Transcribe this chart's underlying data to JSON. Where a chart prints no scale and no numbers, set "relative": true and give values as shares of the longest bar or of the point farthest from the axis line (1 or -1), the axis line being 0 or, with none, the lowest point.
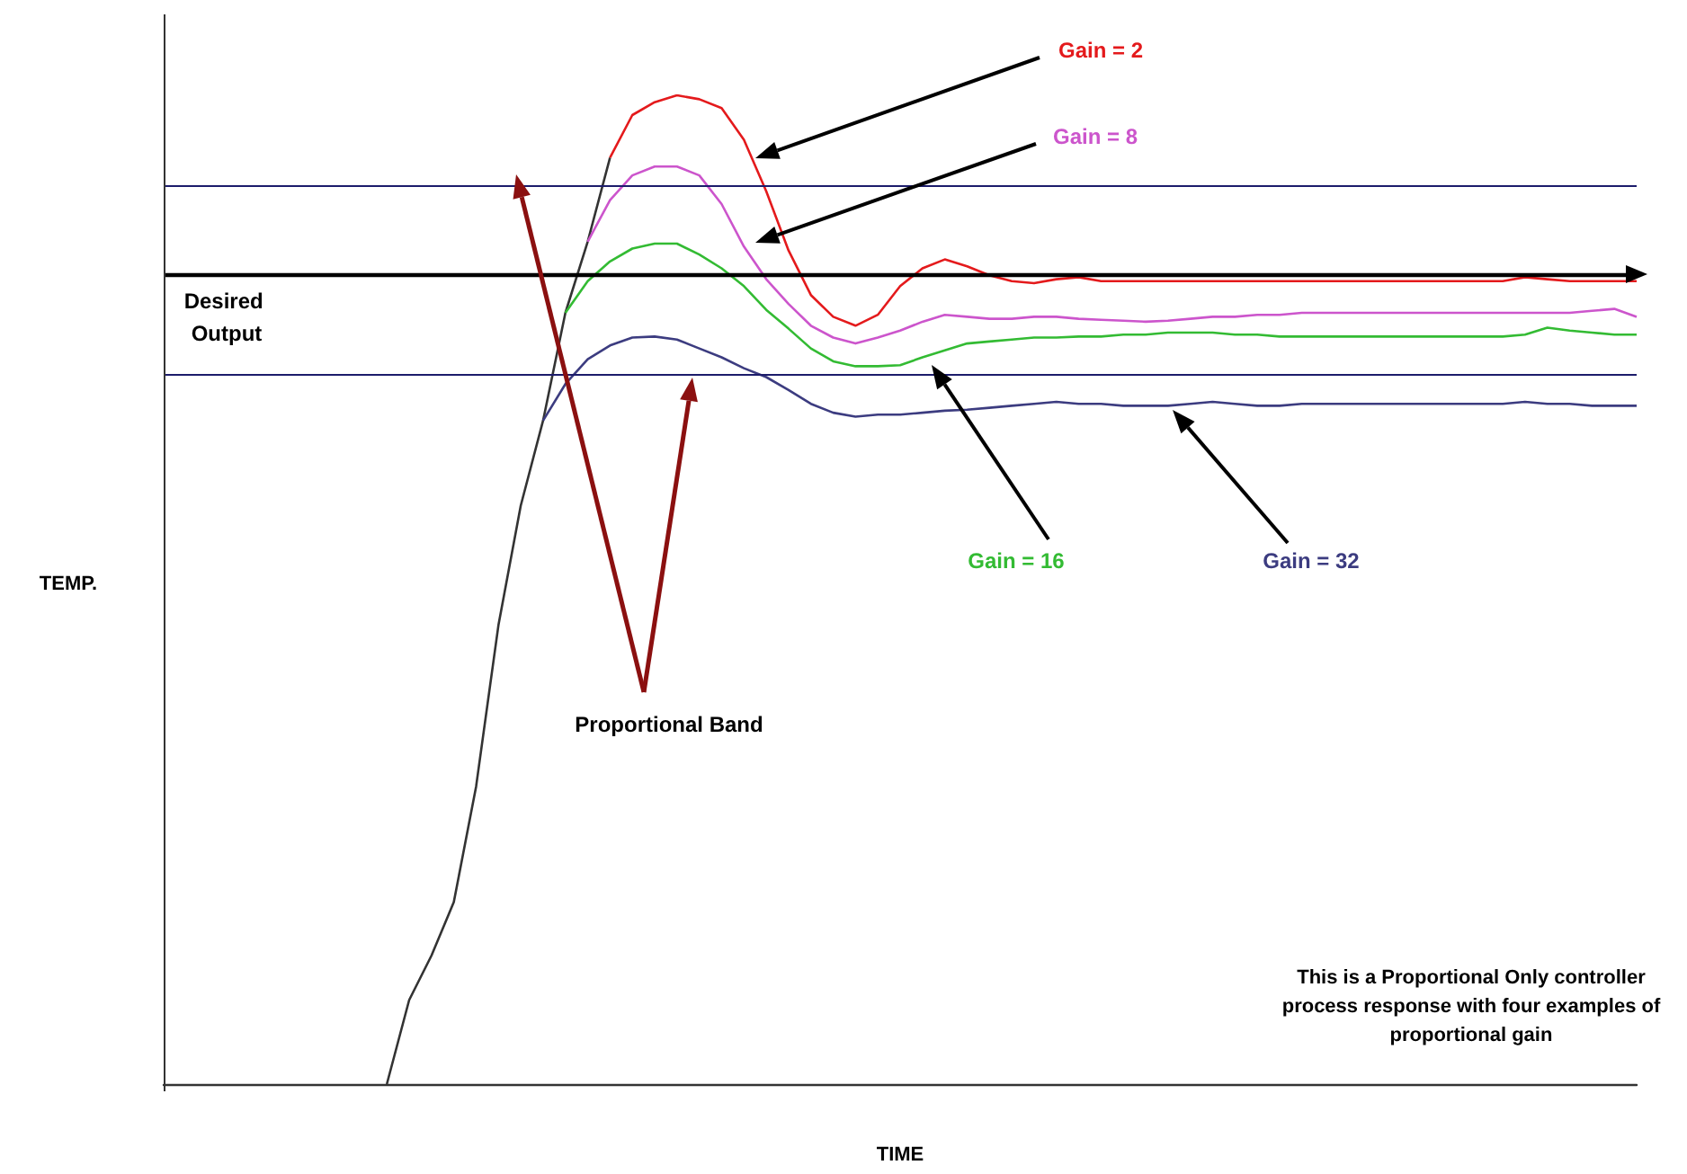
{
  "chart_data": {
    "type": "line",
    "relative": true,
    "xlabel": "TIME",
    "ylabel": "TEMP.",
    "marker": "none",
    "categories": [
      null,
      null,
      null,
      null,
      null,
      null,
      null,
      null,
      null,
      null,
      null,
      null,
      null,
      null,
      null,
      null,
      null,
      null,
      null,
      null,
      null,
      null,
      null,
      null,
      null,
      null,
      null,
      null,
      null,
      null,
      null,
      null,
      null,
      null,
      null,
      null,
      null,
      null,
      null,
      null,
      null,
      null,
      null,
      null,
      null,
      null,
      null,
      null,
      null,
      null,
      null,
      null,
      null,
      null,
      null,
      null,
      null,
      null,
      null,
      null,
      null,
      null,
      null,
      null,
      null,
      null,
      null
    ],
    "series": [
      {
        "color": "#333333",
        "values": [
          null,
          null,
          null,
          null,
          null,
          null,
          null,
          null,
          null,
          null,
          0,
          0.085,
          0.13,
          0.184,
          0.301,
          0.464,
          0.585,
          0.671,
          0.78,
          0.852,
          0.937,
          null,
          null,
          null,
          null,
          null,
          null,
          null,
          null,
          null,
          null,
          null,
          null,
          null,
          null,
          null,
          null,
          null,
          null,
          null,
          null,
          null,
          null,
          null,
          null,
          null,
          null,
          null,
          null,
          null,
          null,
          null,
          null,
          null,
          null,
          null,
          null,
          null,
          null,
          null,
          null,
          null,
          null,
          null,
          null,
          null,
          null
        ]
      },
      {
        "name": "Gain = 2",
        "color": "#e41a1c",
        "values": [
          null,
          null,
          null,
          null,
          null,
          null,
          null,
          null,
          null,
          null,
          null,
          null,
          null,
          null,
          null,
          null,
          null,
          null,
          null,
          null,
          0.937,
          0.98,
          0.993,
          1,
          0.996,
          0.987,
          0.955,
          0.903,
          0.843,
          0.798,
          0.776,
          0.767,
          0.778,
          0.807,
          0.825,
          0.834,
          0.827,
          0.818,
          0.812,
          0.81,
          0.814,
          0.816,
          0.812,
          0.812,
          0.812,
          0.812,
          0.812,
          0.812,
          0.812,
          0.812,
          0.812,
          0.812,
          0.812,
          0.812,
          0.812,
          0.812,
          0.812,
          0.812,
          0.812,
          0.812,
          0.812,
          0.816,
          0.814,
          0.812,
          0.812,
          0.812,
          0.812
        ]
      },
      {
        "name": "Gain = 8",
        "color": "#cc55cc",
        "values": [
          null,
          null,
          null,
          null,
          null,
          null,
          null,
          null,
          null,
          null,
          null,
          null,
          null,
          null,
          null,
          null,
          null,
          null,
          null,
          0.852,
          0.894,
          0.919,
          0.928,
          0.928,
          0.919,
          0.89,
          0.847,
          0.814,
          0.789,
          0.767,
          0.755,
          0.749,
          0.755,
          0.762,
          0.771,
          0.778,
          0.776,
          0.774,
          0.774,
          0.776,
          0.776,
          0.774,
          0.773,
          0.772,
          0.771,
          0.772,
          0.774,
          0.776,
          0.776,
          0.778,
          0.778,
          0.78,
          0.78,
          0.78,
          0.78,
          0.78,
          0.78,
          0.78,
          0.78,
          0.78,
          0.78,
          0.78,
          0.78,
          0.78,
          0.782,
          0.784,
          0.776
        ]
      },
      {
        "name": "Gain = 16",
        "color": "#33bb33",
        "values": [
          null,
          null,
          null,
          null,
          null,
          null,
          null,
          null,
          null,
          null,
          null,
          null,
          null,
          null,
          null,
          null,
          null,
          null,
          0.78,
          0.812,
          0.832,
          0.845,
          0.85,
          0.85,
          0.839,
          0.825,
          0.807,
          0.783,
          0.764,
          0.744,
          0.731,
          0.726,
          0.726,
          0.727,
          0.735,
          0.742,
          0.749,
          0.751,
          0.753,
          0.755,
          0.755,
          0.756,
          0.756,
          0.758,
          0.758,
          0.76,
          0.76,
          0.76,
          0.758,
          0.758,
          0.756,
          0.756,
          0.756,
          0.756,
          0.756,
          0.756,
          0.756,
          0.756,
          0.756,
          0.756,
          0.756,
          0.758,
          0.765,
          0.762,
          0.76,
          0.758,
          0.758
        ]
      },
      {
        "name": "Gain = 32",
        "color": "#3c3c80",
        "values": [
          null,
          null,
          null,
          null,
          null,
          null,
          null,
          null,
          null,
          null,
          null,
          null,
          null,
          null,
          null,
          null,
          null,
          0.671,
          0.708,
          0.733,
          0.747,
          0.755,
          0.756,
          0.753,
          0.744,
          0.735,
          0.724,
          0.715,
          0.702,
          0.688,
          0.679,
          0.675,
          0.677,
          0.677,
          0.679,
          0.681,
          0.682,
          0.684,
          0.686,
          0.688,
          0.69,
          0.688,
          0.688,
          0.686,
          0.686,
          0.686,
          0.688,
          0.69,
          0.688,
          0.686,
          0.686,
          0.688,
          0.688,
          0.688,
          0.688,
          0.688,
          0.688,
          0.688,
          0.688,
          0.688,
          0.688,
          0.69,
          0.688,
          0.688,
          0.686,
          0.686,
          0.686
        ]
      }
    ],
    "ref_lines": [
      {
        "axis": "y",
        "value": 0.908,
        "color": "#1c1c6b"
      },
      {
        "axis": "y",
        "value": 0.819,
        "label": "Desired Output",
        "color": "#000000"
      },
      {
        "axis": "y",
        "value": 0.717,
        "color": "#1c1c6b"
      }
    ],
    "annotations": [
      "Proportional Band",
      "This is a Proportional Only controller process response with four examples of proportional gain"
    ]
  }
}
